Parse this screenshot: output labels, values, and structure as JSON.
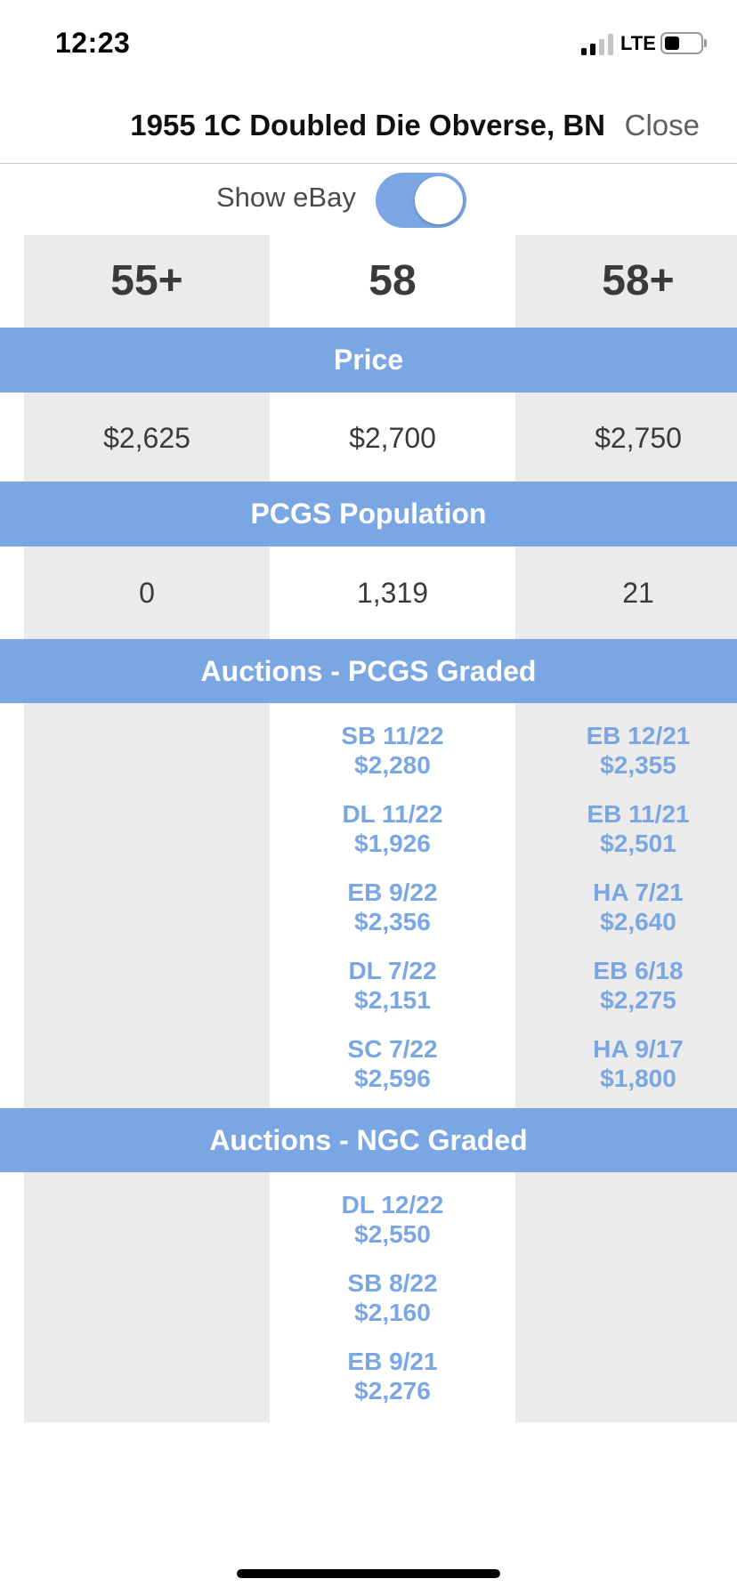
{
  "status_bar": {
    "time": "12:23",
    "network": "LTE",
    "signal_icon": "signal-bars-icon",
    "battery_icon": "battery-icon"
  },
  "header": {
    "title": "1955 1C Doubled Die Obverse, BN",
    "close_label": "Close"
  },
  "toggle": {
    "label": "Show eBay",
    "on": true
  },
  "grades": [
    "55+",
    "58",
    "58+"
  ],
  "sections": {
    "price": {
      "title": "Price",
      "values": [
        "$2,625",
        "$2,700",
        "$2,750"
      ]
    },
    "population": {
      "title": "PCGS Population",
      "values": [
        "0",
        "1,319",
        "21"
      ]
    },
    "pcgs_auctions": {
      "title": "Auctions - PCGS Graded",
      "col1": [],
      "col2": [
        {
          "source": "SB 11/22",
          "price": "$2,280"
        },
        {
          "source": "DL 11/22",
          "price": "$1,926"
        },
        {
          "source": "EB 9/22",
          "price": "$2,356"
        },
        {
          "source": "DL 7/22",
          "price": "$2,151"
        },
        {
          "source": "SC 7/22",
          "price": "$2,596"
        }
      ],
      "col3": [
        {
          "source": "EB 12/21",
          "price": "$2,355"
        },
        {
          "source": "EB 11/21",
          "price": "$2,501"
        },
        {
          "source": "HA 7/21",
          "price": "$2,640"
        },
        {
          "source": "EB 6/18",
          "price": "$2,275"
        },
        {
          "source": "HA 9/17",
          "price": "$1,800"
        }
      ]
    },
    "ngc_auctions": {
      "title": "Auctions - NGC Graded",
      "col1": [],
      "col2": [
        {
          "source": "DL 12/22",
          "price": "$2,550"
        },
        {
          "source": "SB 8/22",
          "price": "$2,160"
        },
        {
          "source": "EB 9/21",
          "price": "$2,276"
        }
      ],
      "col3": []
    }
  },
  "colors": {
    "accent": "#7aa6e3",
    "column_shade": "#ebebeb",
    "text": "#3a3a3a"
  }
}
